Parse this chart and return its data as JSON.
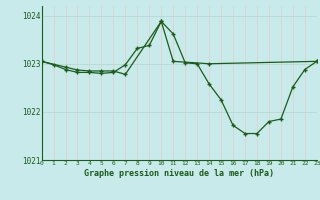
{
  "title": "Graphe pression niveau de la mer (hPa)",
  "bg_color": "#c8eaea",
  "plot_bg_color": "#c8eaea",
  "line_color": "#1a5c1a",
  "grid_h_color": "#b8d8d8",
  "grid_v_color": "#e8c8c8",
  "axis_color": "#1a5c1a",
  "label_color": "#1a5c1a",
  "x_min": 0,
  "x_max": 23,
  "y_min": 1021,
  "y_max": 1024.2,
  "y_ticks": [
    1021,
    1022,
    1023,
    1024
  ],
  "x_ticks": [
    0,
    1,
    2,
    3,
    4,
    5,
    6,
    7,
    8,
    9,
    10,
    11,
    12,
    13,
    14,
    15,
    16,
    17,
    18,
    19,
    20,
    21,
    22,
    23
  ],
  "line1_x": [
    0,
    1,
    2,
    3,
    4,
    5,
    6,
    7,
    8,
    9,
    10,
    11,
    12,
    13,
    14,
    15,
    16,
    17,
    18,
    19,
    20,
    21,
    22,
    23
  ],
  "line1_y": [
    1023.05,
    1022.98,
    1022.88,
    1022.82,
    1022.82,
    1022.8,
    1022.82,
    1022.98,
    1023.32,
    1023.38,
    1023.88,
    1023.62,
    1023.02,
    1023.0,
    1022.58,
    1022.25,
    1021.72,
    1021.55,
    1021.55,
    1021.8,
    1021.85,
    1022.52,
    1022.88,
    1023.05
  ],
  "line2_x": [
    0,
    2,
    3,
    4,
    5,
    6,
    7,
    10,
    11,
    14,
    23
  ],
  "line2_y": [
    1023.05,
    1022.93,
    1022.87,
    1022.85,
    1022.85,
    1022.85,
    1022.78,
    1023.88,
    1023.05,
    1023.0,
    1023.05
  ]
}
